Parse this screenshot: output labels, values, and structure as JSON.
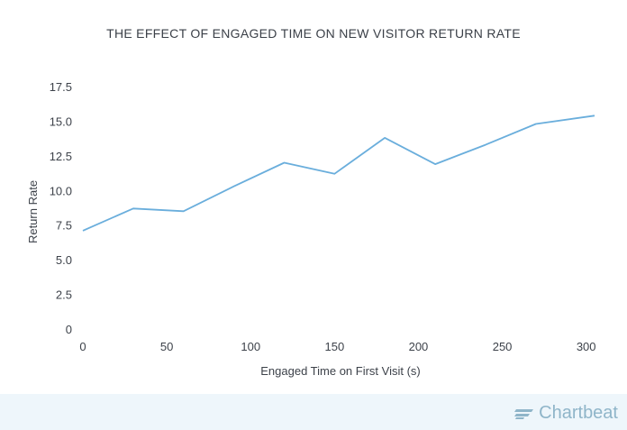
{
  "brand": {
    "name": "Chartbeat",
    "logo_icon": "chartbeat-logo-icon",
    "color": "#8fb5c9"
  },
  "colors": {
    "line": "#6aaedc",
    "text": "#3d424a",
    "footer_band": "#eef6fb"
  },
  "chart_data": {
    "type": "line",
    "title": "THE EFFECT OF ENGAGED TIME ON NEW VISITOR RETURN RATE",
    "xlabel": "Engaged Time on First Visit (s)",
    "ylabel": "Return Rate",
    "xlim": [
      0,
      305
    ],
    "ylim": [
      0,
      17.5
    ],
    "grid": false,
    "legend": "none",
    "x_ticks": [
      "0",
      "50",
      "100",
      "150",
      "200",
      "250",
      "300"
    ],
    "x_tick_values": [
      0,
      50,
      100,
      150,
      200,
      250,
      300
    ],
    "y_ticks": [
      "0",
      "2.5",
      "5.0",
      "7.5",
      "10.0",
      "12.5",
      "15.0",
      "17.5"
    ],
    "y_tick_values": [
      0,
      2.5,
      5.0,
      7.5,
      10.0,
      12.5,
      15.0,
      17.5
    ],
    "series": [
      {
        "x": [
          0,
          30,
          60,
          90,
          120,
          150,
          180,
          210,
          240,
          270,
          305
        ],
        "y": [
          7.1,
          8.7,
          8.5,
          10.3,
          12.0,
          11.2,
          13.8,
          11.9,
          13.3,
          14.8,
          15.4
        ]
      }
    ]
  }
}
